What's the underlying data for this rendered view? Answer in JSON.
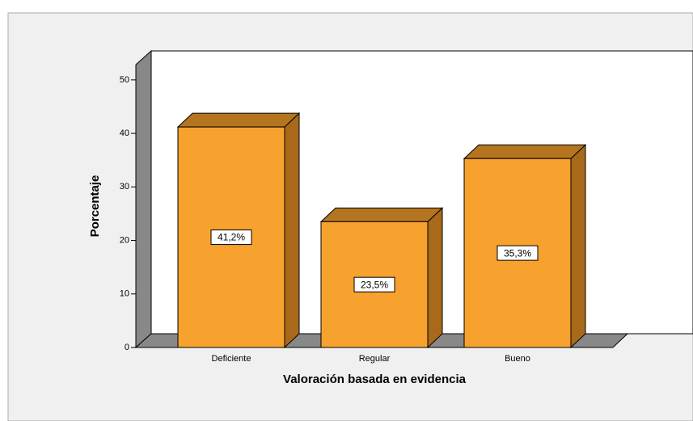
{
  "chart_data": {
    "type": "bar3d",
    "xlabel": "Valoración basada en evidencia",
    "ylabel": "Porcentaje",
    "categories": [
      "Deficiente",
      "Regular",
      "Bueno"
    ],
    "values": [
      41.2,
      23.5,
      35.3
    ],
    "value_labels": [
      "41,2%",
      "23,5%",
      "35,3%"
    ],
    "color": "#f7a12e",
    "ylim": [
      0,
      53
    ],
    "yticks": [
      0,
      10,
      20,
      30,
      40,
      50
    ],
    "grid": false
  }
}
